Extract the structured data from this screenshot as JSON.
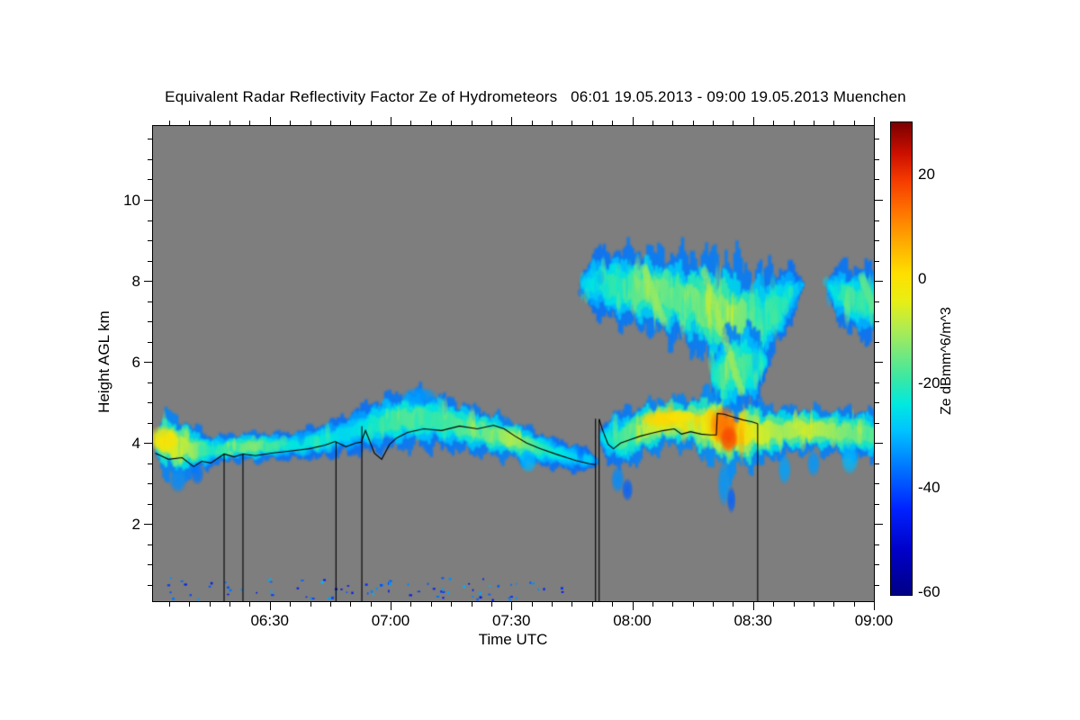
{
  "title": "Equivalent Radar Reflectivity Factor Ze of Hydrometeors   06:01 19.05.2013 - 09:00 19.05.2013 Muenchen",
  "chart_data": {
    "type": "heatmap",
    "title": "Equivalent Radar Reflectivity Factor Ze of Hydrometeors   06:01 19.05.2013 - 09:00 19.05.2013 Muenchen",
    "xlabel": "Time UTC",
    "ylabel": "Height AGL km",
    "time_start": "06:01",
    "time_end": "09:00",
    "date": "19.05.2013",
    "station": "Muenchen",
    "xlim_hours": [
      6.0167,
      9.0
    ],
    "ylim_km": [
      0.1,
      11.82
    ],
    "x_major_ticks": [
      {
        "hours": 6.5,
        "label": "06:30"
      },
      {
        "hours": 7.0,
        "label": "07:00"
      },
      {
        "hours": 7.5,
        "label": "07:30"
      },
      {
        "hours": 8.0,
        "label": "08:00"
      },
      {
        "hours": 8.5,
        "label": "08:30"
      },
      {
        "hours": 9.0,
        "label": "09:00"
      }
    ],
    "x_minor_step_minutes": 5,
    "y_major_ticks": [
      {
        "km": 2,
        "label": "2"
      },
      {
        "km": 4,
        "label": "4"
      },
      {
        "km": 6,
        "label": "6"
      },
      {
        "km": 8,
        "label": "8"
      },
      {
        "km": 10,
        "label": "10"
      }
    ],
    "y_minor_step_km": 0.5,
    "no_signal_color": "#7e7e7e",
    "colormap_stops": [
      [
        -60,
        "#000089"
      ],
      [
        -52,
        "#0000c8"
      ],
      [
        -44,
        "#0022ff"
      ],
      [
        -36,
        "#0077ff"
      ],
      [
        -29,
        "#00c3ff"
      ],
      [
        -24,
        "#00e9e0"
      ],
      [
        -19,
        "#3ae8a4"
      ],
      [
        -14,
        "#79e87b"
      ],
      [
        -9,
        "#b5ec4c"
      ],
      [
        -4,
        "#e9ee12"
      ],
      [
        1,
        "#ffdf00"
      ],
      [
        7,
        "#ffab00"
      ],
      [
        13,
        "#ff7300"
      ],
      [
        19,
        "#f53a00"
      ],
      [
        24,
        "#cc0f00"
      ],
      [
        30,
        "#7a0000"
      ]
    ],
    "colorbar": {
      "label": "Ze dBmm^6/m^3",
      "vmin": -60.5,
      "vmax": 30,
      "tick_values": [
        20,
        0,
        -20,
        -40,
        -60
      ],
      "tick_labels": [
        "20",
        "0",
        "-20",
        "-40",
        "-60"
      ],
      "minor_step": 5
    },
    "cloud_bands": [
      {
        "name": "lower-band-early",
        "seed": 7,
        "spiky": false,
        "streaks": 55,
        "spine": [
          [
            6.02,
            4.05,
            0.75,
            -5
          ],
          [
            6.1,
            3.95,
            0.72,
            -4
          ],
          [
            6.18,
            3.85,
            0.55,
            -10
          ],
          [
            6.26,
            3.82,
            0.33,
            -22
          ],
          [
            6.34,
            3.9,
            0.3,
            -16
          ],
          [
            6.44,
            3.92,
            0.33,
            -12
          ],
          [
            6.52,
            3.93,
            0.3,
            -20
          ],
          [
            6.6,
            3.95,
            0.3,
            -24
          ],
          [
            6.7,
            4.05,
            0.38,
            -22
          ],
          [
            6.8,
            4.2,
            0.42,
            -26
          ],
          [
            6.9,
            4.4,
            0.55,
            -24
          ],
          [
            7.0,
            4.55,
            0.62,
            -18
          ],
          [
            7.1,
            4.62,
            0.65,
            -16
          ],
          [
            7.2,
            4.55,
            0.6,
            -19
          ],
          [
            7.3,
            4.4,
            0.55,
            -16
          ],
          [
            7.4,
            4.25,
            0.5,
            -14
          ],
          [
            7.5,
            4.1,
            0.45,
            -8
          ],
          [
            7.6,
            3.9,
            0.38,
            -18
          ],
          [
            7.7,
            3.72,
            0.32,
            -24
          ],
          [
            7.8,
            3.6,
            0.28,
            -28
          ],
          [
            7.85,
            3.55,
            0.22,
            -32
          ]
        ]
      },
      {
        "name": "lower-band-late",
        "seed": 13,
        "spiky": false,
        "streaks": 60,
        "spine": [
          [
            7.86,
            4.15,
            0.5,
            -26
          ],
          [
            7.95,
            4.1,
            0.65,
            -18
          ],
          [
            8.05,
            4.35,
            0.6,
            -8
          ],
          [
            8.15,
            4.55,
            0.55,
            -2
          ],
          [
            8.25,
            4.5,
            0.6,
            -6
          ],
          [
            8.33,
            4.45,
            0.85,
            4
          ],
          [
            8.42,
            4.3,
            0.9,
            6
          ],
          [
            8.52,
            4.25,
            0.7,
            -4
          ],
          [
            8.62,
            4.3,
            0.55,
            -10
          ],
          [
            8.72,
            4.35,
            0.5,
            -6
          ],
          [
            8.82,
            4.3,
            0.5,
            -10
          ],
          [
            8.92,
            4.25,
            0.55,
            -14
          ],
          [
            9.03,
            4.2,
            0.6,
            -16
          ]
        ]
      },
      {
        "name": "upper-layer-main",
        "seed": 21,
        "spiky": true,
        "streaks": 90,
        "spine": [
          [
            7.78,
            7.9,
            0.45,
            -28
          ],
          [
            7.86,
            7.95,
            0.7,
            -22
          ],
          [
            7.94,
            7.85,
            0.8,
            -18
          ],
          [
            8.02,
            7.8,
            0.85,
            -15
          ],
          [
            8.1,
            7.7,
            0.9,
            -13
          ],
          [
            8.18,
            7.6,
            0.95,
            -16
          ],
          [
            8.26,
            7.45,
            1.05,
            -13
          ],
          [
            8.34,
            7.2,
            1.25,
            -12
          ],
          [
            8.42,
            7.0,
            1.35,
            -11
          ],
          [
            8.5,
            6.9,
            1.2,
            -15
          ],
          [
            8.58,
            7.2,
            0.95,
            -18
          ],
          [
            8.66,
            7.7,
            0.6,
            -24
          ],
          [
            8.7,
            7.9,
            0.4,
            -28
          ]
        ]
      },
      {
        "name": "upper-layer-right",
        "seed": 31,
        "spiky": true,
        "streaks": 25,
        "spine": [
          [
            8.8,
            7.9,
            0.45,
            -26
          ],
          [
            8.88,
            7.6,
            0.7,
            -19
          ],
          [
            8.96,
            7.45,
            0.8,
            -21
          ],
          [
            9.03,
            7.55,
            0.7,
            -23
          ]
        ]
      },
      {
        "name": "merge-column",
        "seed": 41,
        "spiky": false,
        "streaks": 22,
        "spine": [
          [
            8.32,
            5.6,
            0.7,
            -22
          ],
          [
            8.4,
            5.8,
            1.0,
            -14
          ],
          [
            8.48,
            5.9,
            0.95,
            -18
          ],
          [
            8.55,
            6.0,
            0.7,
            -24
          ]
        ]
      }
    ],
    "cloud_blobs": [
      [
        6.06,
        4.1,
        0.07,
        0.35,
        0
      ],
      [
        6.12,
        3.1,
        0.04,
        0.35,
        -34
      ],
      [
        6.2,
        3.25,
        0.03,
        0.3,
        -36
      ],
      [
        7.12,
        5.15,
        0.08,
        0.25,
        -33
      ],
      [
        7.57,
        3.55,
        0.04,
        0.3,
        -30
      ],
      [
        7.94,
        3.1,
        0.03,
        0.35,
        -34
      ],
      [
        7.98,
        2.85,
        0.025,
        0.3,
        -38
      ],
      [
        8.12,
        4.6,
        0.1,
        0.22,
        2
      ],
      [
        8.2,
        4.65,
        0.07,
        0.18,
        0
      ],
      [
        8.38,
        4.45,
        0.06,
        0.5,
        14
      ],
      [
        8.4,
        4.1,
        0.04,
        0.35,
        18
      ],
      [
        8.38,
        3.0,
        0.03,
        0.6,
        -33
      ],
      [
        8.41,
        2.6,
        0.02,
        0.35,
        -38
      ],
      [
        8.63,
        3.35,
        0.03,
        0.4,
        -32
      ],
      [
        8.75,
        3.5,
        0.03,
        0.35,
        -33
      ],
      [
        8.9,
        3.6,
        0.04,
        0.4,
        -30
      ]
    ],
    "diagonal_streaks": [
      [
        8.3,
        8.2,
        8.45,
        5.3,
        0.18,
        -8
      ],
      [
        8.05,
        8.3,
        8.13,
        7.0,
        0.15,
        -11
      ],
      [
        8.95,
        8.1,
        9.0,
        7.3,
        0.15,
        -16
      ]
    ],
    "surface_speckles": {
      "count": 85,
      "t_range": [
        6.07,
        7.72
      ],
      "z_range": [
        0.15,
        0.7
      ],
      "v_range": [
        -48,
        -30
      ],
      "seed": 99
    },
    "lidar_trace_segments": [
      [
        [
          6.026,
          3.75
        ],
        [
          6.081,
          3.6
        ],
        [
          6.137,
          3.64
        ],
        [
          6.185,
          3.42
        ],
        [
          6.219,
          3.55
        ],
        [
          6.256,
          3.51
        ],
        [
          6.311,
          3.73
        ],
        [
          6.352,
          3.66
        ],
        [
          6.389,
          3.73
        ],
        [
          6.441,
          3.69
        ],
        [
          6.507,
          3.75
        ],
        [
          6.581,
          3.8
        ],
        [
          6.663,
          3.86
        ],
        [
          6.73,
          3.95
        ],
        [
          6.77,
          4.04
        ],
        [
          6.815,
          3.91
        ],
        [
          6.856,
          4.0
        ],
        [
          6.878,
          4.02
        ],
        [
          6.896,
          4.31
        ],
        [
          6.933,
          3.75
        ],
        [
          6.963,
          3.6
        ],
        [
          6.996,
          3.97
        ],
        [
          7.026,
          4.13
        ],
        [
          7.07,
          4.26
        ],
        [
          7.137,
          4.35
        ],
        [
          7.211,
          4.31
        ],
        [
          7.285,
          4.42
        ],
        [
          7.359,
          4.35
        ],
        [
          7.426,
          4.44
        ],
        [
          7.47,
          4.35
        ],
        [
          7.515,
          4.17
        ],
        [
          7.563,
          4.0
        ],
        [
          7.619,
          3.86
        ],
        [
          7.693,
          3.71
        ],
        [
          7.767,
          3.57
        ],
        [
          7.822,
          3.49
        ],
        [
          7.848,
          3.47
        ]
      ],
      [
        [
          7.863,
          4.59
        ],
        [
          7.878,
          4.31
        ],
        [
          7.9,
          3.97
        ],
        [
          7.922,
          3.86
        ],
        [
          7.952,
          4.0
        ],
        [
          7.989,
          4.08
        ],
        [
          8.033,
          4.17
        ],
        [
          8.078,
          4.24
        ],
        [
          8.13,
          4.31
        ],
        [
          8.174,
          4.35
        ],
        [
          8.204,
          4.22
        ],
        [
          8.241,
          4.28
        ],
        [
          8.285,
          4.22
        ],
        [
          8.322,
          4.2
        ],
        [
          8.348,
          4.2
        ],
        [
          8.352,
          4.73
        ],
        [
          8.381,
          4.71
        ],
        [
          8.419,
          4.64
        ],
        [
          8.459,
          4.57
        ],
        [
          8.493,
          4.53
        ],
        [
          8.519,
          4.48
        ]
      ]
    ],
    "attenuation_lines": [
      [
        6.311,
        3.73
      ],
      [
        6.389,
        3.73
      ],
      [
        6.774,
        4.04
      ],
      [
        6.881,
        4.42
      ],
      [
        7.848,
        4.6
      ],
      [
        7.863,
        4.59
      ],
      [
        8.519,
        4.48
      ]
    ]
  }
}
